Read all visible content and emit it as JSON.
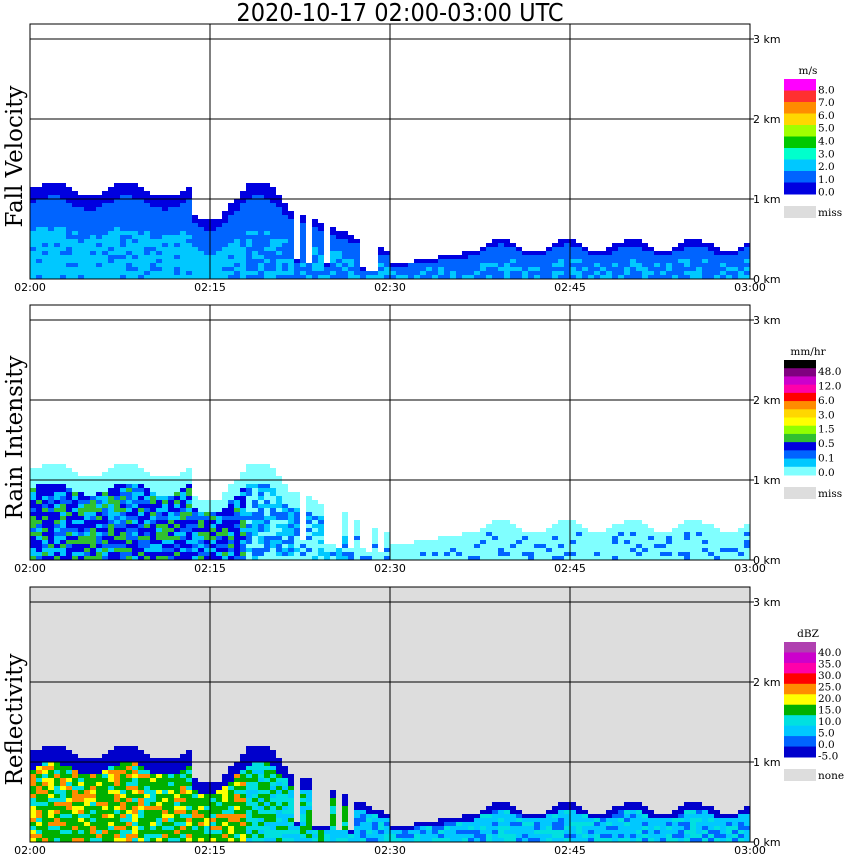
{
  "title": "2020-10-17   02:00-03:00 UTC",
  "x_ticks": [
    "02:00",
    "02:15",
    "02:30",
    "02:45",
    "03:00"
  ],
  "height_ticks": [
    "0 km",
    "1 km",
    "2 km",
    "3 km"
  ],
  "chart_data": [
    {
      "type": "heatmap",
      "title": "Fall Velocity",
      "ylabel": "Fall Velocity",
      "x_range": [
        "02:00",
        "03:00"
      ],
      "y_range_km": [
        0,
        3.1
      ],
      "background": "white",
      "colorbar": {
        "unit": "m/s",
        "labels": [
          "8.0",
          "7.0",
          "6.0",
          "5.0",
          "4.0",
          "3.0",
          "2.0",
          "1.0",
          "0.0"
        ],
        "colors": [
          "#ff00ff",
          "#ff3030",
          "#ff8c00",
          "#ffd700",
          "#a0ff00",
          "#00c800",
          "#00ffcc",
          "#00c8ff",
          "#0064ff",
          "#0000e0"
        ],
        "missing_label": "miss",
        "missing_color": "#dddddd"
      }
    },
    {
      "type": "heatmap",
      "title": "Rain Intensity",
      "ylabel": "Rain Intensity",
      "x_range": [
        "02:00",
        "03:00"
      ],
      "y_range_km": [
        0,
        3.1
      ],
      "background": "white",
      "colorbar": {
        "unit": "mm/hr",
        "labels": [
          "48.0",
          "12.0",
          "6.0",
          "3.0",
          "1.5",
          "0.5",
          "0.1",
          "0.0"
        ],
        "colors": [
          "#000000",
          "#800080",
          "#cc00cc",
          "#ff00aa",
          "#ff0000",
          "#ff8c00",
          "#ffd700",
          "#ffff00",
          "#90ff00",
          "#30c030",
          "#0000e0",
          "#0064ff",
          "#00c8ff",
          "#80ffff"
        ],
        "missing_label": "miss",
        "missing_color": "#dddddd"
      }
    },
    {
      "type": "heatmap",
      "title": "Reflectivity",
      "ylabel": "Reflectivity",
      "x_range": [
        "02:00",
        "03:00"
      ],
      "y_range_km": [
        0,
        3.1
      ],
      "background": "lightgray",
      "colorbar": {
        "unit": "dBZ",
        "labels": [
          "40.0",
          "35.0",
          "30.0",
          "25.0",
          "20.0",
          "15.0",
          "10.0",
          "5.0",
          "0.0",
          "-5.0"
        ],
        "colors": [
          "#b040b0",
          "#cc00cc",
          "#ff00aa",
          "#ff0000",
          "#ff8c00",
          "#ffff00",
          "#00b000",
          "#00e0e0",
          "#00c8ff",
          "#0064ff",
          "#0000cc"
        ],
        "missing_label": "none",
        "missing_color": "#dddddd"
      }
    }
  ]
}
